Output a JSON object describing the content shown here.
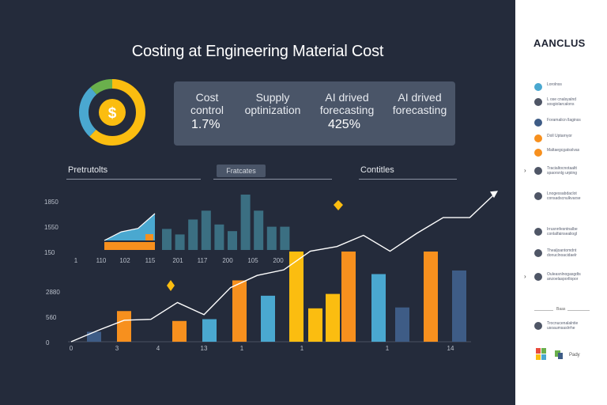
{
  "title": "Costing at Engineering Material Cost",
  "colors": {
    "bg": "#242b3b",
    "orange": "#f7901e",
    "yellow": "#fbbd10",
    "blue": "#4aa8d0",
    "teal": "#3b6f82",
    "navy": "#3e5c86",
    "green": "#6ab04c"
  },
  "kpis": [
    {
      "label": "Cost\ncontrol",
      "value": "1.7%"
    },
    {
      "label": "Supply\noptinization",
      "value": ""
    },
    {
      "label": "AI drived\nforecasting",
      "value": "425%"
    },
    {
      "label": "AI drived\nforecasting",
      "value": ""
    }
  ],
  "sections": {
    "left": "Pretrutolts",
    "tab": "Fratcates",
    "right": "Contitles"
  },
  "sidebar": {
    "brand": "AANCLUS",
    "items": [
      {
        "icon": "blue-circle-icon",
        "text": "Lorolnss"
      },
      {
        "icon": "gray-circle-icon",
        "text": "L ose cnalsyalnd\nsosgiolarcalons"
      },
      {
        "icon": "navy-circle-icon",
        "text": "Foramalicn llaginss"
      },
      {
        "icon": "orange-circle-icon",
        "text": "Doll Uptarnyor"
      },
      {
        "icon": "orange-circle-icon",
        "text": "Maltaegcgatsslvas"
      },
      {
        "icon": "gray-circle-icon",
        "text": "Tracialtocnotaaltt\nspaorsnlg urpiing"
      },
      {
        "icon": "gray-circle-icon",
        "text": "Lnogessabdaclot\nconsadscnulkvarse"
      },
      {
        "icon": "gray-circle-icon",
        "text": "Irrusnnfesntnalbe\nconlalfainsealiogl"
      },
      {
        "icon": "gray-circle-icon",
        "text": "Thealjoantomdnt\ndonuclnoacidaelr"
      },
      {
        "icon": "gray-circle-icon",
        "text": "Ouleasnlnogasgdts\nanzoelasporllopor"
      },
      {
        "icon": "gray-circle-icon",
        "text": "Trocnucenalalntie\nusoaumsaslrrhe"
      }
    ],
    "divider_label": "Baas",
    "footer": "Pady"
  },
  "chart_data": [
    {
      "type": "bar",
      "title": "Fratcates",
      "y_tick_labels": [
        "1850",
        "1550",
        "150"
      ],
      "x_tick_labels": [
        "1",
        "110",
        "102",
        "115",
        "201",
        "117",
        "200",
        "105",
        "200"
      ],
      "area_series": [
        {
          "name": "Blue",
          "values": [
            0,
            0.32,
            0.45,
            1.0
          ]
        },
        {
          "name": "Orange",
          "values": [
            0.12,
            0.12,
            0.18,
            0.18
          ]
        }
      ],
      "bars": [
        {
          "name": "teal",
          "values": [
            0.38,
            0.28,
            0.55,
            0.71,
            0.46,
            0.34,
            1.0,
            0.71,
            0.42,
            0.42
          ]
        }
      ]
    },
    {
      "type": "bar",
      "y_tick_labels": [
        "2880",
        "560",
        "0"
      ],
      "x_tick_labels": [
        "0",
        "3",
        "4",
        "13",
        "1",
        "1",
        "1",
        "14"
      ],
      "bars": [
        {
          "color": "navy",
          "value": 0.11
        },
        {
          "color": "orange",
          "value": 0.34
        },
        {
          "color": "orange",
          "value": 0.23
        },
        {
          "color": "blue",
          "value": 0.25
        },
        {
          "color": "orange",
          "value": 0.68
        },
        {
          "color": "blue",
          "value": 0.51
        },
        {
          "color": "yellow",
          "value": 1.0
        },
        {
          "color": "yellow",
          "value": 0.37
        },
        {
          "color": "yellow",
          "value": 0.53
        },
        {
          "color": "orange",
          "value": 1.0
        },
        {
          "color": "blue",
          "value": 0.75
        },
        {
          "color": "navy",
          "value": 0.38
        },
        {
          "color": "orange",
          "value": 1.0
        },
        {
          "color": "navy",
          "value": 0.79
        }
      ],
      "trend_line": {
        "values": [
          0.0,
          0.12,
          0.23,
          0.24,
          0.42,
          0.29,
          0.58,
          0.71,
          0.77,
          0.97,
          1.02,
          1.14,
          0.97,
          1.16,
          1.33,
          1.33,
          1.6
        ]
      }
    }
  ]
}
